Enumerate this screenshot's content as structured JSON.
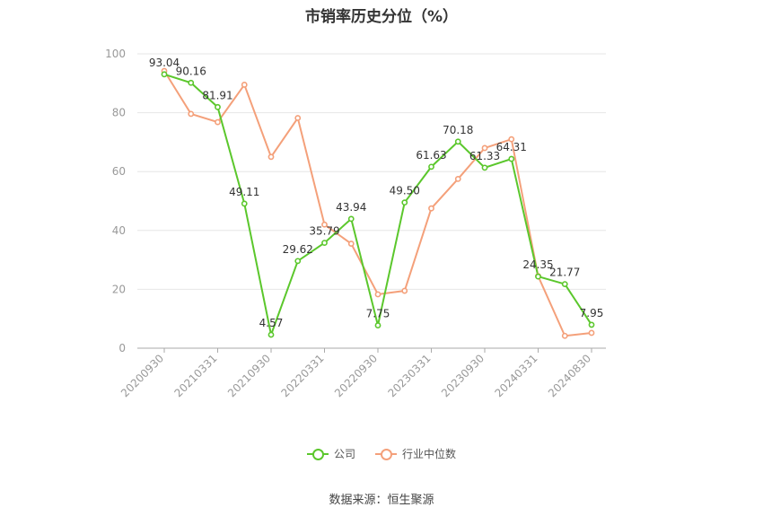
{
  "chart_data": {
    "type": "line",
    "title": "市销率历史分位（%）",
    "source": "数据来源：恒生聚源",
    "ylim": [
      0,
      100
    ],
    "yticks": [
      0,
      20,
      40,
      60,
      80,
      100
    ],
    "x_tick_labels": [
      "20200930",
      "20210331",
      "20210930",
      "20220331",
      "20220930",
      "20230331",
      "20230930",
      "20240331",
      "20240830"
    ],
    "x_tick_positions": [
      0,
      2,
      4,
      6,
      8,
      10,
      12,
      14,
      16
    ],
    "legend_position": "bottom-center",
    "grid": true,
    "series": [
      {
        "name": "公司",
        "color": "#5bc72c",
        "values": [
          93.04,
          90.16,
          81.91,
          49.11,
          4.57,
          29.62,
          35.79,
          43.94,
          7.75,
          49.5,
          61.63,
          70.18,
          61.33,
          64.31,
          24.35,
          21.77,
          7.95
        ],
        "labels": [
          "93.04",
          "90.16",
          "81.91",
          "49.11",
          "4.57",
          "29.62",
          "35.79",
          "43.94",
          "7.75",
          "49.50",
          "61.63",
          "70.18",
          "61.33",
          "64.31",
          "24.35",
          "21.77",
          "7.95"
        ]
      },
      {
        "name": "行业中位数",
        "color": "#f4a07a",
        "values": [
          94.2,
          79.6,
          76.8,
          89.5,
          65.0,
          78.2,
          42.0,
          35.5,
          18.3,
          19.5,
          47.5,
          57.5,
          68.0,
          71.0,
          24.5,
          4.2,
          5.2
        ]
      }
    ]
  }
}
